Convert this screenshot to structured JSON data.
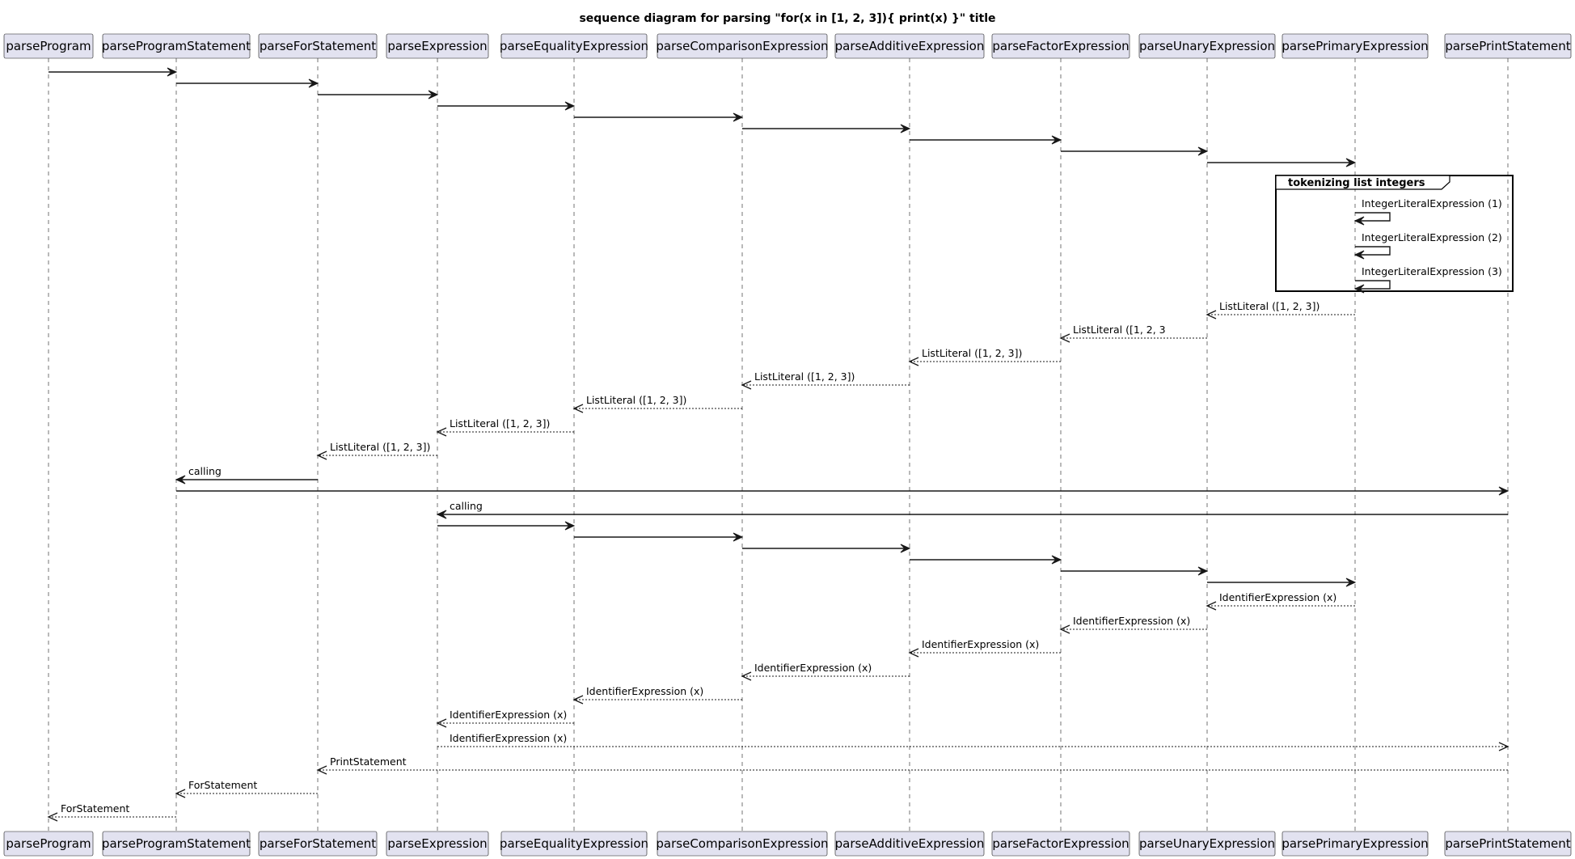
{
  "title": "sequence diagram for parsing \"for(x in [1, 2, 3]){ print(x) }\" title",
  "participants": [
    "parseProgram",
    "parseProgramStatement",
    "parseForStatement",
    "parseExpression",
    "parseEqualityExpression",
    "parseComparisonExpression",
    "parseAdditiveExpression",
    "parseFactorExpression",
    "parseUnaryExpression",
    "parsePrimaryExpression",
    "parsePrintStatement"
  ],
  "group": {
    "label": "tokenizing list integers",
    "messages": [
      "IntegerLiteralExpression (1)",
      "IntegerLiteralExpression (2)",
      "IntegerLiteralExpression (3)"
    ]
  },
  "messages": [
    {
      "from": 0,
      "to": 1,
      "label": "",
      "type": "call"
    },
    {
      "from": 1,
      "to": 2,
      "label": "",
      "type": "call"
    },
    {
      "from": 2,
      "to": 3,
      "label": "",
      "type": "call"
    },
    {
      "from": 3,
      "to": 4,
      "label": "",
      "type": "call"
    },
    {
      "from": 4,
      "to": 5,
      "label": "",
      "type": "call"
    },
    {
      "from": 5,
      "to": 6,
      "label": "",
      "type": "call"
    },
    {
      "from": 6,
      "to": 7,
      "label": "",
      "type": "call"
    },
    {
      "from": 7,
      "to": 8,
      "label": "",
      "type": "call"
    },
    {
      "from": 8,
      "to": 9,
      "label": "",
      "type": "call"
    },
    {
      "from": 9,
      "to": 9,
      "label": "IntegerLiteralExpression (1)",
      "type": "self",
      "group": true
    },
    {
      "from": 9,
      "to": 9,
      "label": "IntegerLiteralExpression (2)",
      "type": "self",
      "group": true
    },
    {
      "from": 9,
      "to": 9,
      "label": "IntegerLiteralExpression (3)",
      "type": "self",
      "group": true
    },
    {
      "from": 9,
      "to": 8,
      "label": "ListLiteral ([1, 2, 3])",
      "type": "return"
    },
    {
      "from": 8,
      "to": 7,
      "label": "ListLiteral ([1, 2, 3",
      "type": "return"
    },
    {
      "from": 7,
      "to": 6,
      "label": "ListLiteral ([1, 2, 3])",
      "type": "return"
    },
    {
      "from": 6,
      "to": 5,
      "label": "ListLiteral ([1, 2, 3])",
      "type": "return"
    },
    {
      "from": 5,
      "to": 4,
      "label": "ListLiteral ([1, 2, 3])",
      "type": "return"
    },
    {
      "from": 4,
      "to": 3,
      "label": "ListLiteral ([1, 2, 3])",
      "type": "return"
    },
    {
      "from": 3,
      "to": 2,
      "label": "ListLiteral ([1, 2, 3])",
      "type": "return"
    },
    {
      "from": 2,
      "to": 1,
      "label": "calling",
      "type": "call"
    },
    {
      "from": 1,
      "to": 10,
      "label": "",
      "type": "call"
    },
    {
      "from": 10,
      "to": 3,
      "label": "calling",
      "type": "call"
    },
    {
      "from": 3,
      "to": 4,
      "label": "",
      "type": "call"
    },
    {
      "from": 4,
      "to": 5,
      "label": "",
      "type": "call"
    },
    {
      "from": 5,
      "to": 6,
      "label": "",
      "type": "call"
    },
    {
      "from": 6,
      "to": 7,
      "label": "",
      "type": "call"
    },
    {
      "from": 7,
      "to": 8,
      "label": "",
      "type": "call"
    },
    {
      "from": 8,
      "to": 9,
      "label": "",
      "type": "call"
    },
    {
      "from": 9,
      "to": 8,
      "label": "IdentifierExpression (x)",
      "type": "return"
    },
    {
      "from": 8,
      "to": 7,
      "label": "IdentifierExpression (x)",
      "type": "return"
    },
    {
      "from": 7,
      "to": 6,
      "label": "IdentifierExpression (x)",
      "type": "return"
    },
    {
      "from": 6,
      "to": 5,
      "label": "IdentifierExpression (x)",
      "type": "return"
    },
    {
      "from": 5,
      "to": 4,
      "label": "IdentifierExpression (x)",
      "type": "return"
    },
    {
      "from": 4,
      "to": 3,
      "label": "IdentifierExpression (x)",
      "type": "return"
    },
    {
      "from": 3,
      "to": 10,
      "label": "IdentifierExpression (x)",
      "type": "return"
    },
    {
      "from": 10,
      "to": 2,
      "label": "PrintStatement",
      "type": "return"
    },
    {
      "from": 2,
      "to": 1,
      "label": "ForStatement",
      "type": "return"
    },
    {
      "from": 1,
      "to": 0,
      "label": "ForStatement",
      "type": "return"
    }
  ]
}
